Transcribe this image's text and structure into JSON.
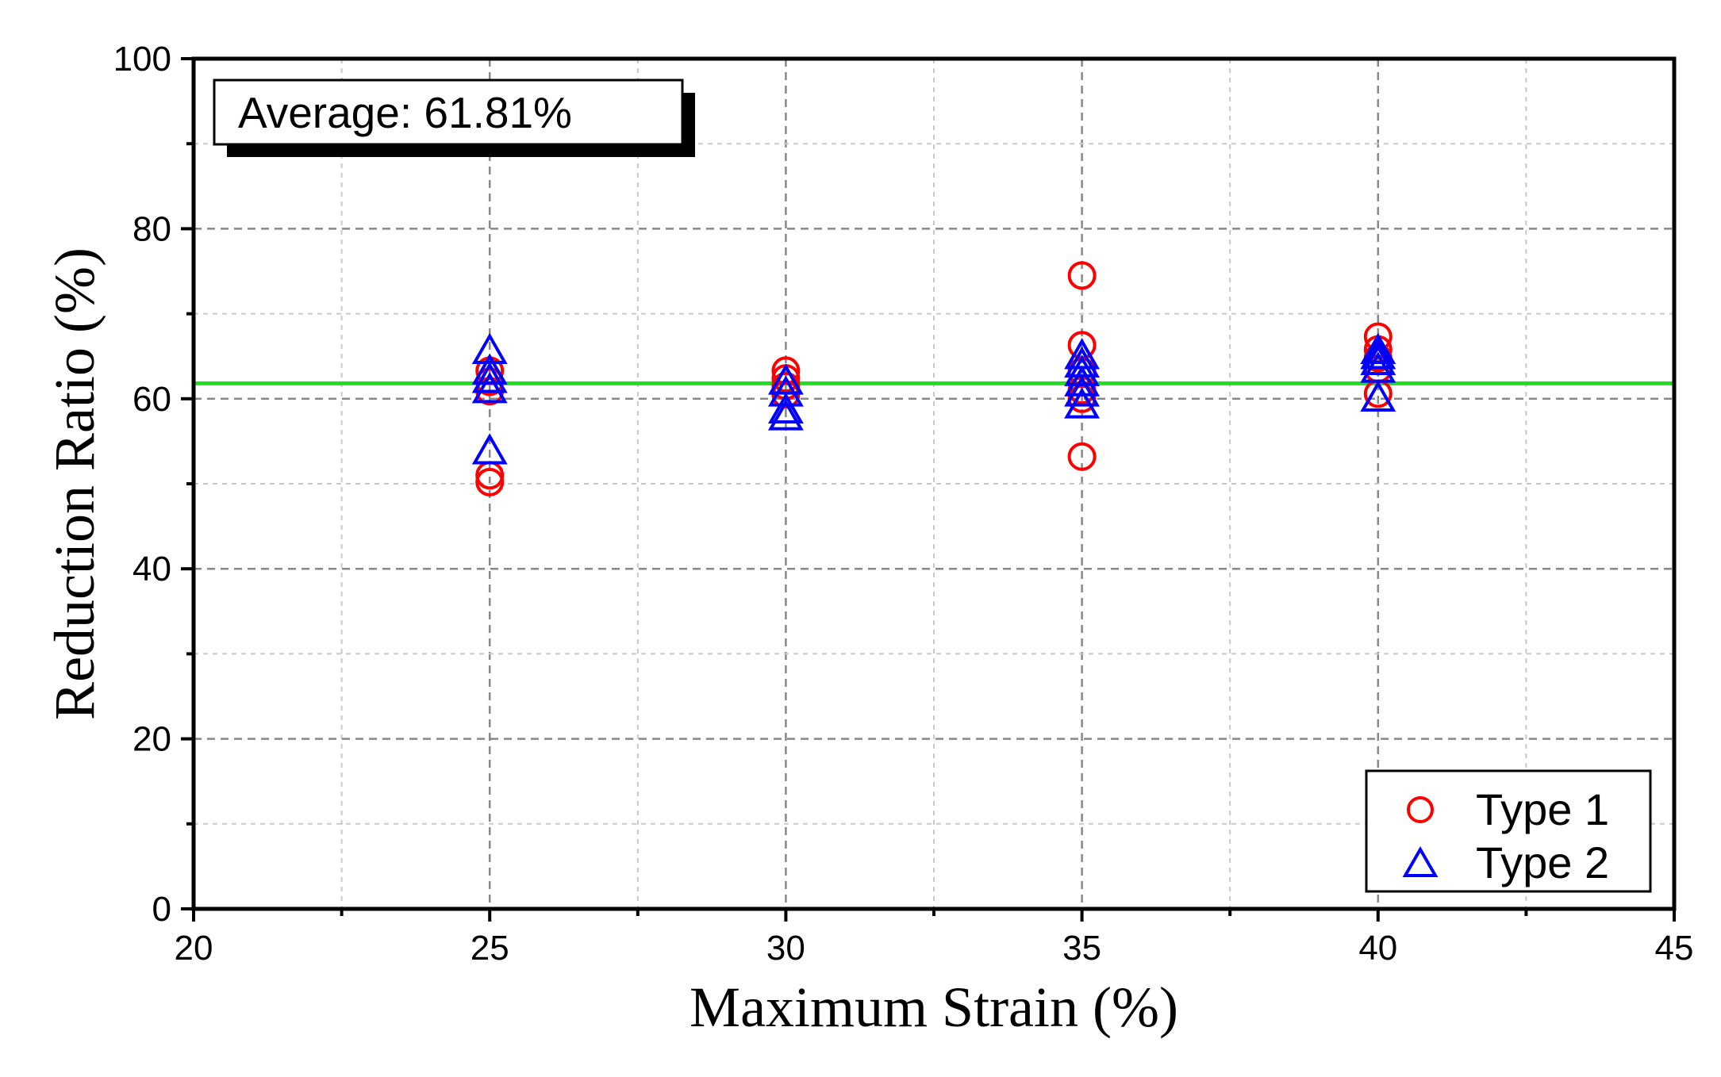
{
  "chart_data": {
    "type": "scatter",
    "xlabel": "Maximum Strain (%)",
    "ylabel": "Reduction Ratio (%)",
    "xlim": [
      20,
      45
    ],
    "ylim": [
      0,
      100
    ],
    "x_ticks": [
      20,
      25,
      30,
      35,
      40,
      45
    ],
    "y_ticks": [
      0,
      20,
      40,
      60,
      80,
      100
    ],
    "grid": true,
    "legend_position": "bottom-right",
    "annotation": "Average: 61.81%",
    "average_line": {
      "y": 61.81,
      "color": "#22dd22"
    },
    "series": [
      {
        "name": "Type 1",
        "marker": "circle",
        "color": "#ff0000",
        "points": [
          [
            25,
            63.3
          ],
          [
            25,
            62.0
          ],
          [
            25,
            60.9
          ],
          [
            25,
            51.0
          ],
          [
            25,
            50.2
          ],
          [
            30,
            63.3
          ],
          [
            30,
            62.4
          ],
          [
            30,
            61.5
          ],
          [
            30,
            60.5
          ],
          [
            35,
            74.5
          ],
          [
            35,
            66.3
          ],
          [
            35,
            63.2
          ],
          [
            35,
            61.0
          ],
          [
            35,
            60.0
          ],
          [
            35,
            53.2
          ],
          [
            40,
            67.3
          ],
          [
            40,
            65.8
          ],
          [
            40,
            64.8
          ],
          [
            40,
            63.5
          ],
          [
            40,
            60.6
          ]
        ]
      },
      {
        "name": "Type 2",
        "marker": "triangle",
        "color": "#0000ff",
        "points": [
          [
            25,
            65.6
          ],
          [
            25,
            63.2
          ],
          [
            25,
            62.2
          ],
          [
            25,
            61.0
          ],
          [
            25,
            53.8
          ],
          [
            30,
            62.0
          ],
          [
            30,
            60.6
          ],
          [
            30,
            58.6
          ],
          [
            30,
            57.8
          ],
          [
            35,
            65.0
          ],
          [
            35,
            64.0
          ],
          [
            35,
            63.0
          ],
          [
            35,
            61.8
          ],
          [
            35,
            60.6
          ],
          [
            35,
            59.2
          ],
          [
            40,
            65.6
          ],
          [
            40,
            65.0
          ],
          [
            40,
            64.3
          ],
          [
            40,
            63.4
          ],
          [
            40,
            60.0
          ]
        ]
      }
    ]
  }
}
